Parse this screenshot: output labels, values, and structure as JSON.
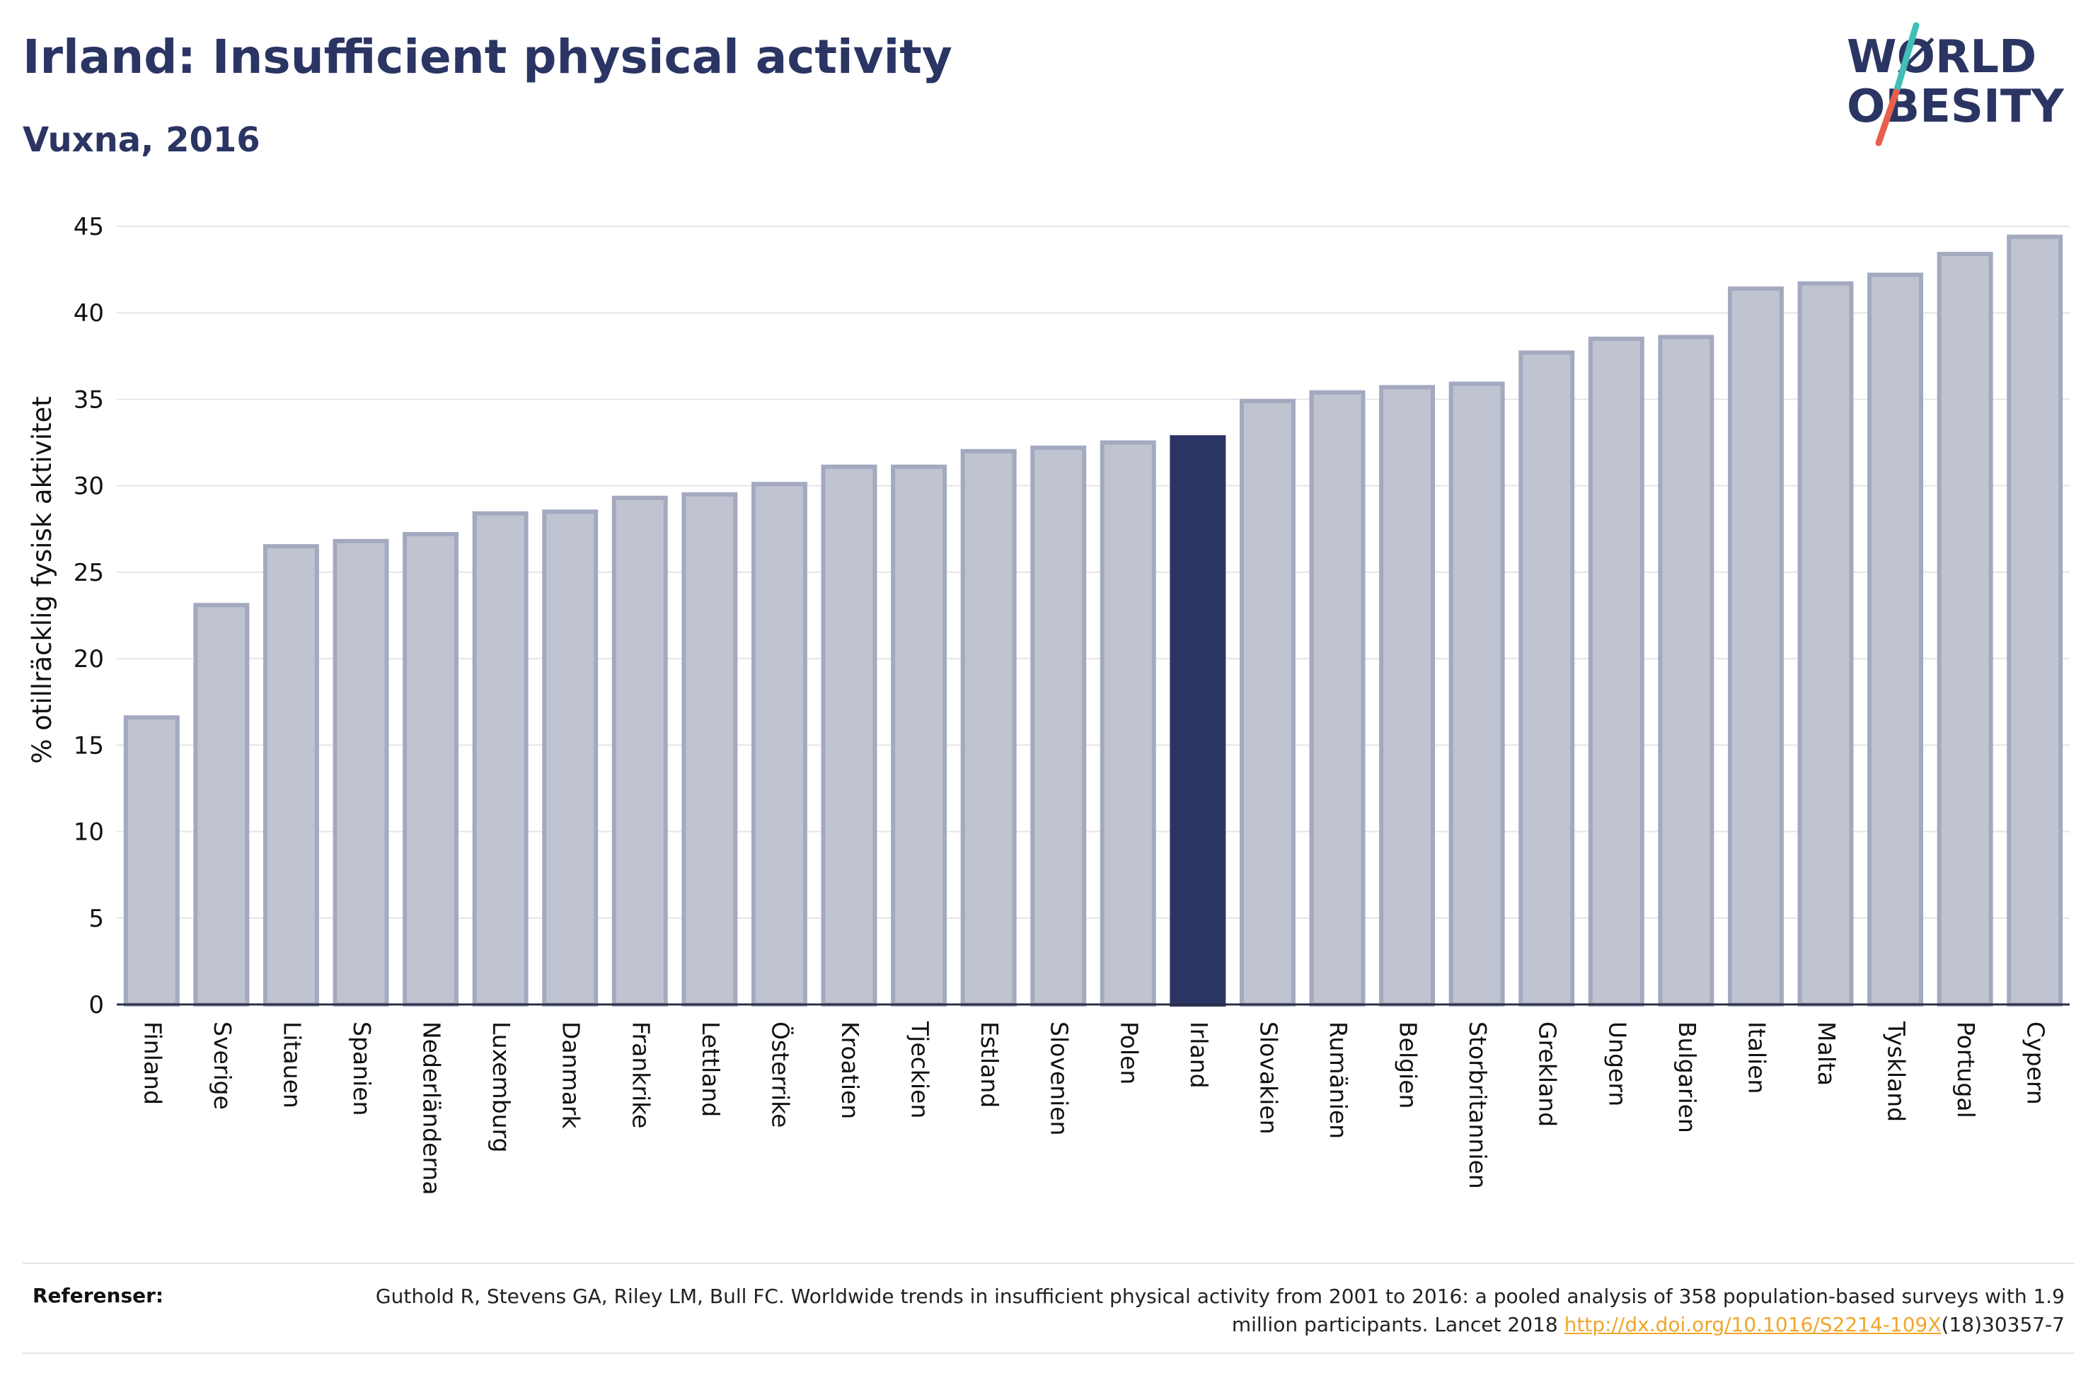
{
  "header": {
    "title": "Irland: Insufficient physical activity",
    "subtitle": "Vuxna, 2016"
  },
  "logo": {
    "line1": "WØRLD",
    "line2": "OBESITY",
    "colors": {
      "text": "#2b3563",
      "slash_top": "#3fbfb5",
      "slash_bottom": "#e8604c"
    }
  },
  "chart_data": {
    "type": "bar",
    "title": "Irland: Insufficient physical activity",
    "subtitle": "Vuxna, 2016",
    "xlabel": "",
    "ylabel": "% otillräcklig fysisk aktivitet",
    "ylim": [
      0,
      45
    ],
    "yticks": [
      0,
      5,
      10,
      15,
      20,
      25,
      30,
      35,
      40,
      45
    ],
    "grid": true,
    "highlight": "Irland",
    "colors": {
      "bar": "#c0c4d0",
      "bar_edge": "#a3a9bf",
      "highlight": "#2b3563",
      "grid": "#e5e5e5",
      "axis": "#2a2f45"
    },
    "categories": [
      "Finland",
      "Sverige",
      "Litauen",
      "Spanien",
      "Nederländerna",
      "Luxemburg",
      "Danmark",
      "Frankrike",
      "Lettland",
      "Österrike",
      "Kroatien",
      "Tjeckien",
      "Estland",
      "Slovenien",
      "Polen",
      "Irland",
      "Slovakien",
      "Rumänien",
      "Belgien",
      "Storbritannien",
      "Grekland",
      "Ungern",
      "Bulgarien",
      "Italien",
      "Malta",
      "Tyskland",
      "Portugal",
      "Cypern"
    ],
    "values": [
      16.6,
      23.1,
      26.5,
      26.8,
      27.2,
      28.4,
      28.5,
      29.3,
      29.5,
      30.1,
      31.1,
      31.1,
      32.0,
      32.2,
      32.5,
      32.8,
      34.9,
      35.4,
      35.7,
      35.9,
      37.7,
      38.5,
      38.6,
      41.4,
      41.7,
      42.2,
      43.4,
      44.4
    ]
  },
  "references": {
    "label": "Referenser:",
    "text_before": "Guthold R, Stevens GA, Riley LM, Bull FC. Worldwide trends in insufficient physical activity from 2001 to 2016: a pooled analysis of 358 population-based surveys with 1.9 million participants. Lancet 2018 ",
    "link": "http://dx.doi.org/10.1016/S2214-109X",
    "text_after": "(18)30357-7"
  }
}
